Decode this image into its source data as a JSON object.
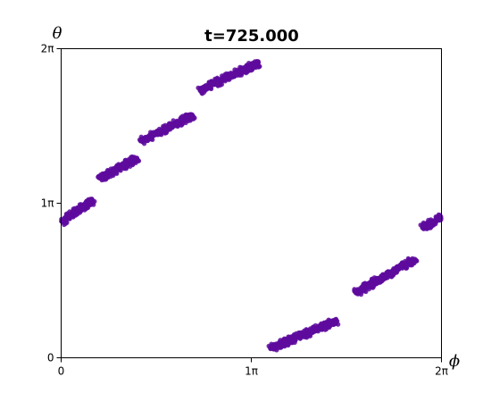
{
  "chart_data": {
    "type": "scatter",
    "title": "t=725.000",
    "xlabel": "ϕ",
    "ylabel": "θ",
    "xlim_pi": [
      0,
      2
    ],
    "ylim_pi": [
      0,
      2
    ],
    "x_ticks": [
      {
        "value_pi": 0,
        "label": "0"
      },
      {
        "value_pi": 1,
        "label": "1π"
      },
      {
        "value_pi": 2,
        "label": "2π"
      }
    ],
    "y_ticks": [
      {
        "value_pi": 0,
        "label": "0"
      },
      {
        "value_pi": 1,
        "label": "1π"
      },
      {
        "value_pi": 2,
        "label": "2π"
      }
    ],
    "grid": false,
    "legend": "none",
    "marker_color": "#5e0a9e",
    "clusters_pi": [
      {
        "x_from": 0.0,
        "y_from": 0.88,
        "x_to": 0.17,
        "y_to": 1.02
      },
      {
        "x_from": 0.2,
        "y_from": 1.16,
        "x_to": 0.4,
        "y_to": 1.29
      },
      {
        "x_from": 0.42,
        "y_from": 1.4,
        "x_to": 0.69,
        "y_to": 1.57
      },
      {
        "x_from": 0.73,
        "y_from": 1.73,
        "x_to": 1.04,
        "y_to": 1.91
      },
      {
        "x_from": 1.1,
        "y_from": 0.06,
        "x_to": 1.45,
        "y_to": 0.24
      },
      {
        "x_from": 1.55,
        "y_from": 0.42,
        "x_to": 1.86,
        "y_to": 0.64
      },
      {
        "x_from": 1.9,
        "y_from": 0.84,
        "x_to": 2.0,
        "y_to": 0.91
      }
    ]
  }
}
